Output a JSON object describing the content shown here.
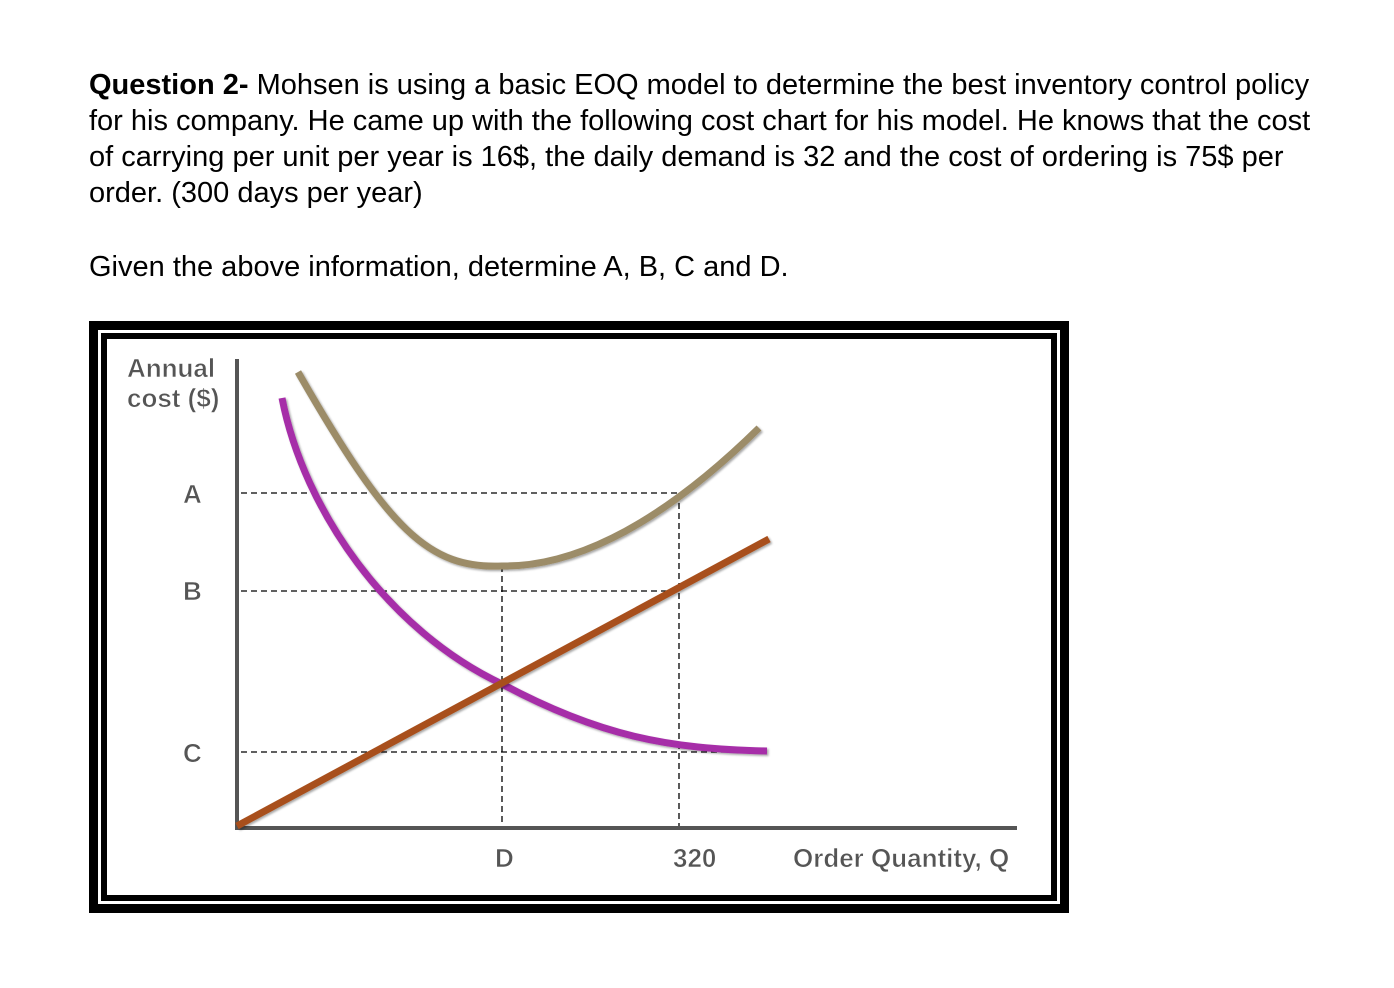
{
  "question": {
    "heading": "Question 2-",
    "body": " Mohsen is using a basic EOQ model to determine the best inventory control policy for his company. He came up with the following cost chart for his model. He knows that the cost of carrying per unit per year is 16$, the daily demand is 32 and the cost of ordering is 75$ per order. (300 days per year)",
    "prompt": "Given the above information, determine A, B, C and D."
  },
  "chart_data": {
    "type": "line",
    "ylabel": [
      "Annual",
      "cost ($)"
    ],
    "xlabel": "Order Quantity, Q",
    "x_ticks": [
      "D",
      "320"
    ],
    "y_ticks": [
      "A",
      "B",
      "C"
    ],
    "series": [
      {
        "color": "#9c8c68"
      },
      {
        "color": "#a62ea8"
      },
      {
        "color": "#a8501c"
      }
    ],
    "colors": {
      "axis": "#555555",
      "dashed": "#000000",
      "frame": "#000000"
    }
  }
}
